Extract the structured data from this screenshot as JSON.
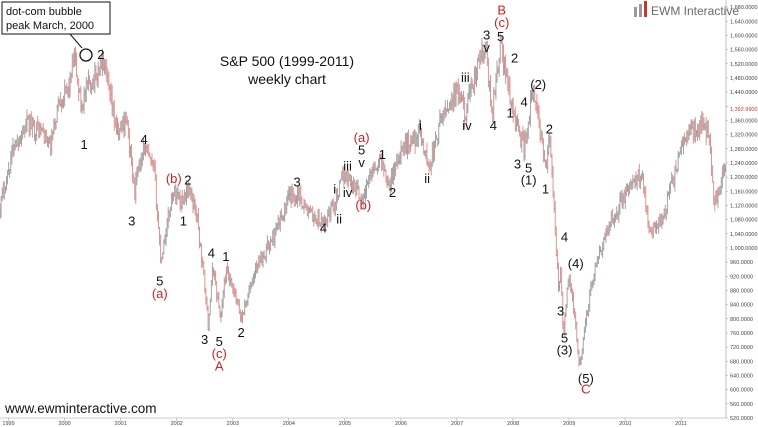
{
  "chart_data": {
    "type": "candlestick",
    "title_line1": "S&P 500 (1999-2011)",
    "title_line2": "weekly chart",
    "brand": "EWM Interactive",
    "website": "www.ewminteractive.com",
    "callout_line1": "dot-com bubble",
    "callout_line2": "peak  March, 2000",
    "x_range": [
      1998.85,
      2011.8
    ],
    "ylim": [
      520,
      1700
    ],
    "x_ticks": [
      {
        "label": "1999",
        "year": 1999
      },
      {
        "label": "2000",
        "year": 2000
      },
      {
        "label": "2001",
        "year": 2001
      },
      {
        "label": "2002",
        "year": 2002
      },
      {
        "label": "2003",
        "year": 2003
      },
      {
        "label": "2004",
        "year": 2004
      },
      {
        "label": "2005",
        "year": 2005
      },
      {
        "label": "2006",
        "year": 2006
      },
      {
        "label": "2007",
        "year": 2007
      },
      {
        "label": "2008",
        "year": 2008
      },
      {
        "label": "2009",
        "year": 2009
      },
      {
        "label": "2010",
        "year": 2010
      },
      {
        "label": "2011",
        "year": 2011
      }
    ],
    "y_ticks": [
      "1,680.0000",
      "1,640.0000",
      "1,600.0000",
      "1,560.0000",
      "1,520.0000",
      "1,480.0000",
      "1,440.0000",
      "1,400.0000",
      "1,360.0000",
      "1,320.0000",
      "1,280.0000",
      "1,240.0000",
      "1,200.0000",
      "1,160.0000",
      "1,120.0000",
      "1,080.0000",
      "1,040.0000",
      "1,000.0000",
      "960.0000",
      "920.0000",
      "880.0000",
      "840.0000",
      "800.0000",
      "760.0000",
      "720.0000",
      "680.0000",
      "640.0000",
      "600.0000",
      "560.0000",
      "520.0000"
    ],
    "last_price_label": "1,392.9900",
    "last_price": 1392.99,
    "anchors": [
      [
        1998.85,
        1120
      ],
      [
        1999.1,
        1290
      ],
      [
        1999.35,
        1350
      ],
      [
        1999.6,
        1330
      ],
      [
        1999.75,
        1280
      ],
      [
        1999.9,
        1420
      ],
      [
        2000.05,
        1440
      ],
      [
        2000.18,
        1530
      ],
      [
        2000.3,
        1400
      ],
      [
        2000.42,
        1460
      ],
      [
        2000.55,
        1480
      ],
      [
        2000.68,
        1530
      ],
      [
        2000.8,
        1430
      ],
      [
        2000.95,
        1320
      ],
      [
        2001.1,
        1370
      ],
      [
        2001.25,
        1160
      ],
      [
        2001.4,
        1290
      ],
      [
        2001.6,
        1215
      ],
      [
        2001.72,
        965
      ],
      [
        2001.92,
        1150
      ],
      [
        2002.0,
        1160
      ],
      [
        2002.08,
        1130
      ],
      [
        2002.2,
        1170
      ],
      [
        2002.35,
        1105
      ],
      [
        2002.5,
        900
      ],
      [
        2002.56,
        780
      ],
      [
        2002.65,
        950
      ],
      [
        2002.78,
        800
      ],
      [
        2002.88,
        935
      ],
      [
        2003.05,
        860
      ],
      [
        2003.15,
        800
      ],
      [
        2003.45,
        960
      ],
      [
        2003.7,
        1020
      ],
      [
        2004.0,
        1140
      ],
      [
        2004.18,
        1155
      ],
      [
        2004.3,
        1110
      ],
      [
        2004.6,
        1063
      ],
      [
        2004.82,
        1130
      ],
      [
        2005.0,
        1210
      ],
      [
        2005.15,
        1180
      ],
      [
        2005.32,
        1137
      ],
      [
        2005.5,
        1230
      ],
      [
        2005.65,
        1245
      ],
      [
        2005.8,
        1180
      ],
      [
        2006.0,
        1280
      ],
      [
        2006.35,
        1325
      ],
      [
        2006.5,
        1225
      ],
      [
        2006.75,
        1380
      ],
      [
        2007.0,
        1440
      ],
      [
        2007.15,
        1380
      ],
      [
        2007.42,
        1540
      ],
      [
        2007.52,
        1555
      ],
      [
        2007.62,
        1380
      ],
      [
        2007.78,
        1575
      ],
      [
        2008.0,
        1380
      ],
      [
        2008.2,
        1280
      ],
      [
        2008.35,
        1440
      ],
      [
        2008.45,
        1365
      ],
      [
        2008.6,
        1220
      ],
      [
        2008.66,
        1315
      ],
      [
        2008.72,
        1140
      ],
      [
        2008.78,
        960
      ],
      [
        2008.82,
        880
      ],
      [
        2008.85,
        930
      ],
      [
        2008.9,
        750
      ],
      [
        2009.0,
        940
      ],
      [
        2009.1,
        800
      ],
      [
        2009.19,
        666
      ],
      [
        2009.4,
        900
      ],
      [
        2009.7,
        1060
      ],
      [
        2010.0,
        1150
      ],
      [
        2010.3,
        1215
      ],
      [
        2010.45,
        1040
      ],
      [
        2010.7,
        1100
      ],
      [
        2011.0,
        1280
      ],
      [
        2011.15,
        1340
      ],
      [
        2011.3,
        1330
      ],
      [
        2011.4,
        1370
      ],
      [
        2011.5,
        1300
      ],
      [
        2011.6,
        1120
      ],
      [
        2011.75,
        1210
      ]
    ],
    "annotations": [
      {
        "text": "1",
        "x": 2000.35,
        "y": 1290,
        "color": "#111111"
      },
      {
        "text": "2",
        "x": 2000.65,
        "y": 1545,
        "color": "#111111"
      },
      {
        "text": "4",
        "x": 2001.42,
        "y": 1305,
        "color": "#111111"
      },
      {
        "text": "3",
        "x": 2001.2,
        "y": 1075,
        "color": "#111111"
      },
      {
        "text": "5",
        "x": 2001.7,
        "y": 905,
        "color": "#111111"
      },
      {
        "text": "(a)",
        "x": 2001.7,
        "y": 870,
        "color": "#cc2222"
      },
      {
        "text": "(b)",
        "x": 2001.95,
        "y": 1195,
        "color": "#cc2222"
      },
      {
        "text": "2",
        "x": 2002.2,
        "y": 1190,
        "color": "#111111"
      },
      {
        "text": "1",
        "x": 2002.12,
        "y": 1075,
        "color": "#111111"
      },
      {
        "text": "4",
        "x": 2002.62,
        "y": 985,
        "color": "#111111"
      },
      {
        "text": "1",
        "x": 2002.88,
        "y": 975,
        "color": "#111111"
      },
      {
        "text": "3",
        "x": 2002.5,
        "y": 740,
        "color": "#111111"
      },
      {
        "text": "5",
        "x": 2002.76,
        "y": 735,
        "color": "#111111"
      },
      {
        "text": "(c)",
        "x": 2002.76,
        "y": 700,
        "color": "#cc2222"
      },
      {
        "text": "A",
        "x": 2002.76,
        "y": 665,
        "color": "#cc2222"
      },
      {
        "text": "2",
        "x": 2003.15,
        "y": 760,
        "color": "#111111"
      },
      {
        "text": "3",
        "x": 2004.15,
        "y": 1185,
        "color": "#111111"
      },
      {
        "text": "4",
        "x": 2004.62,
        "y": 1055,
        "color": "#111111"
      },
      {
        "text": "i",
        "x": 2004.82,
        "y": 1165,
        "color": "#111111"
      },
      {
        "text": "ii",
        "x": 2004.9,
        "y": 1080,
        "color": "#111111"
      },
      {
        "text": "iii",
        "x": 2005.05,
        "y": 1230,
        "color": "#111111"
      },
      {
        "text": "iv",
        "x": 2005.05,
        "y": 1155,
        "color": "#111111"
      },
      {
        "text": "5",
        "x": 2005.3,
        "y": 1275,
        "color": "#111111"
      },
      {
        "text": "v",
        "x": 2005.3,
        "y": 1240,
        "color": "#111111"
      },
      {
        "text": "(a)",
        "x": 2005.3,
        "y": 1310,
        "color": "#cc2222"
      },
      {
        "text": "(b)",
        "x": 2005.33,
        "y": 1120,
        "color": "#cc2222"
      },
      {
        "text": "1",
        "x": 2005.67,
        "y": 1262,
        "color": "#111111"
      },
      {
        "text": "2",
        "x": 2005.85,
        "y": 1155,
        "color": "#111111"
      },
      {
        "text": "i",
        "x": 2006.35,
        "y": 1345,
        "color": "#111111"
      },
      {
        "text": "ii",
        "x": 2006.47,
        "y": 1195,
        "color": "#111111"
      },
      {
        "text": "iii",
        "x": 2007.15,
        "y": 1480,
        "color": "#111111"
      },
      {
        "text": "iv",
        "x": 2007.18,
        "y": 1345,
        "color": "#111111"
      },
      {
        "text": "3",
        "x": 2007.53,
        "y": 1600,
        "color": "#111111"
      },
      {
        "text": "v",
        "x": 2007.53,
        "y": 1565,
        "color": "#111111"
      },
      {
        "text": "4",
        "x": 2007.65,
        "y": 1345,
        "color": "#111111"
      },
      {
        "text": "5",
        "x": 2007.78,
        "y": 1595,
        "color": "#111111"
      },
      {
        "text": "(c)",
        "x": 2007.8,
        "y": 1635,
        "color": "#cc2222"
      },
      {
        "text": "B",
        "x": 2007.8,
        "y": 1670,
        "color": "#cc2222"
      },
      {
        "text": "2",
        "x": 2008.03,
        "y": 1535,
        "color": "#111111"
      },
      {
        "text": "1",
        "x": 2007.95,
        "y": 1380,
        "color": "#111111"
      },
      {
        "text": "4",
        "x": 2008.2,
        "y": 1410,
        "color": "#111111"
      },
      {
        "text": "(2)",
        "x": 2008.45,
        "y": 1460,
        "color": "#111111"
      },
      {
        "text": "2",
        "x": 2008.65,
        "y": 1335,
        "color": "#111111"
      },
      {
        "text": "3",
        "x": 2008.08,
        "y": 1235,
        "color": "#111111"
      },
      {
        "text": "5",
        "x": 2008.28,
        "y": 1225,
        "color": "#111111"
      },
      {
        "text": "(1)",
        "x": 2008.28,
        "y": 1190,
        "color": "#111111"
      },
      {
        "text": "1",
        "x": 2008.58,
        "y": 1165,
        "color": "#111111"
      },
      {
        "text": "4",
        "x": 2008.92,
        "y": 1030,
        "color": "#111111"
      },
      {
        "text": "(4)",
        "x": 2009.12,
        "y": 955,
        "color": "#111111"
      },
      {
        "text": "3",
        "x": 2008.85,
        "y": 820,
        "color": "#111111"
      },
      {
        "text": "5",
        "x": 2008.92,
        "y": 745,
        "color": "#111111"
      },
      {
        "text": "(3)",
        "x": 2008.92,
        "y": 710,
        "color": "#111111"
      },
      {
        "text": "(5)",
        "x": 2009.3,
        "y": 630,
        "color": "#111111"
      },
      {
        "text": "C",
        "x": 2009.3,
        "y": 600,
        "color": "#cc2222"
      }
    ]
  }
}
